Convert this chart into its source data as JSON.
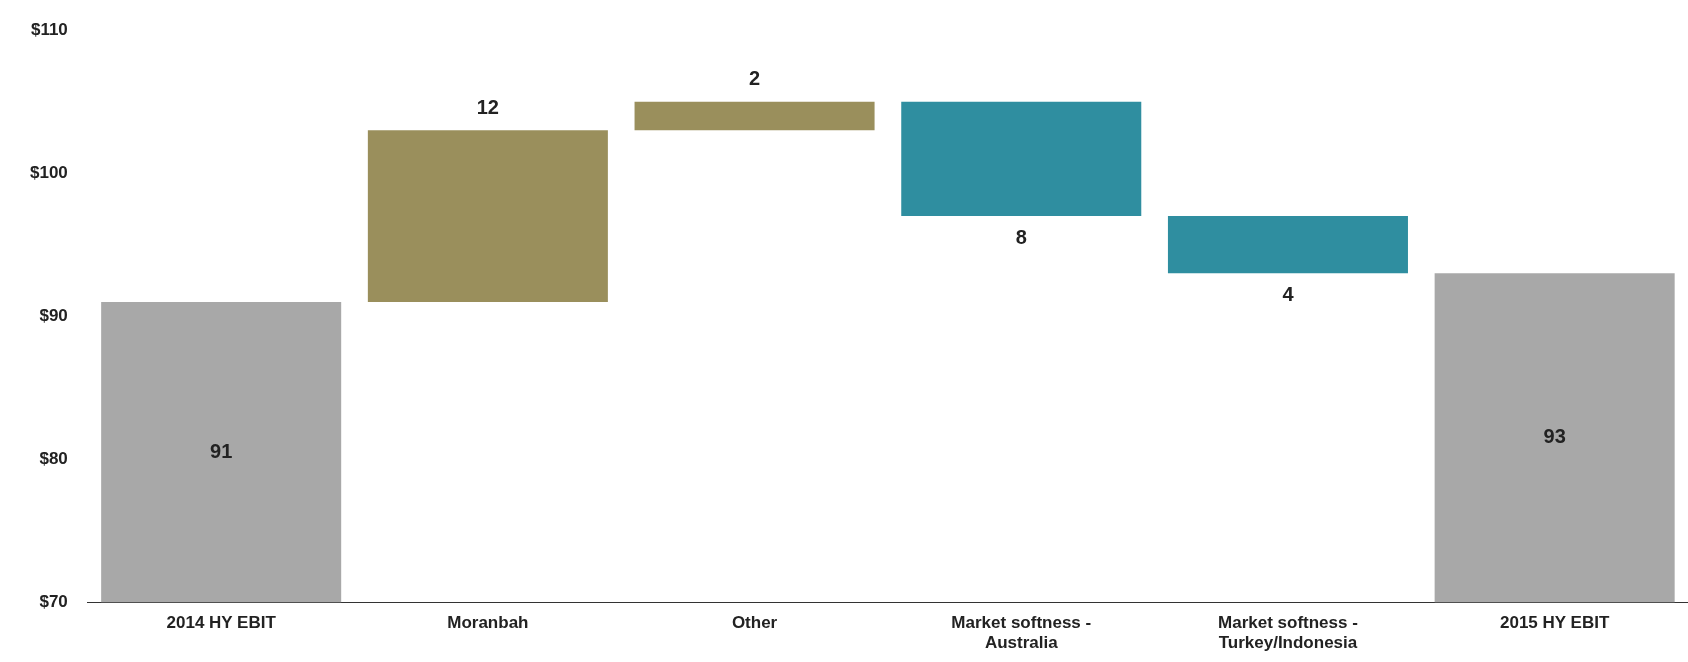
{
  "chart_data": {
    "type": "bar",
    "categories": [
      "2014 HY EBIT",
      "Moranbah",
      "Other",
      "Market softness - Australia",
      "Market softness - Turkey/Indonesia",
      "2015 HY EBIT"
    ],
    "values": [
      91,
      12,
      2,
      -8,
      -4,
      93
    ],
    "base": [
      null,
      91,
      103,
      105,
      97,
      null
    ],
    "value_labels": [
      "91",
      "12",
      "2",
      "8",
      "4",
      "93"
    ],
    "colors": [
      "#a8a8a8",
      "#9a8f5c",
      "#9a8f5c",
      "#2f8ea0",
      "#2f8ea0",
      "#a8a8a8"
    ],
    "ylim": [
      70,
      110
    ],
    "yticks": [
      {
        "value": 70,
        "label": "$70"
      },
      {
        "value": 80,
        "label": "$80"
      },
      {
        "value": 90,
        "label": "$90"
      },
      {
        "value": 100,
        "label": "$100"
      },
      {
        "value": 110,
        "label": "$110"
      }
    ],
    "grid": false,
    "legend": false
  }
}
